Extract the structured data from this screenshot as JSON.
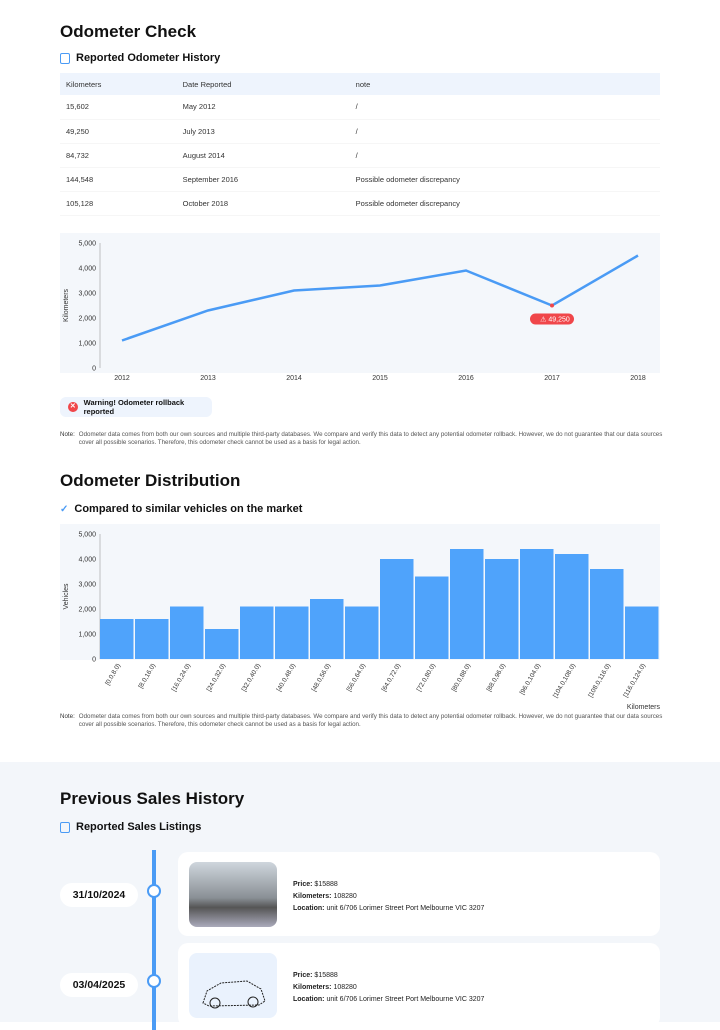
{
  "odometer": {
    "title": "Odometer Check",
    "history_title": "Reported Odometer History",
    "columns": [
      "Kilometers",
      "Date Reported",
      "note"
    ],
    "rows": [
      [
        "15,602",
        "May 2012",
        "/"
      ],
      [
        "49,250",
        "July 2013",
        "/"
      ],
      [
        "84,732",
        "August 2014",
        "/"
      ],
      [
        "144,548",
        "September 2016",
        "Possible odometer discrepancy"
      ],
      [
        "105,128",
        "October 2018",
        "Possible odometer discrepancy"
      ]
    ],
    "warning": "Warning! Odometer rollback reported",
    "note_label": "Note:",
    "note_text": "Odometer data comes from both our own sources and multiple third-party databases. We compare and verify this data to detect any potential odometer rollback. However, we do not guarantee that our data sources cover all possible scenarios. Therefore, this odometer check cannot be used as a basis for legal action."
  },
  "distribution": {
    "title": "Odometer Distribution",
    "subtitle": "Compared to similar vehicles on the market"
  },
  "sales": {
    "title": "Previous Sales History",
    "subtitle": "Reported Sales Listings",
    "items": [
      {
        "date": "31/10/2024",
        "price_label": "Price:",
        "price": "$15888",
        "km_label": "Kilometers:",
        "km": "108280",
        "loc_label": "Location:",
        "location": "unit 6/706 Lorimer Street Port Melbourne VIC 3207"
      },
      {
        "date": "03/04/2025",
        "price_label": "Price:",
        "price": "$15888",
        "km_label": "Kilometers:",
        "km": "108280",
        "loc_label": "Location:",
        "location": "unit 6/706 Lorimer Street Port Melbourne VIC 3207"
      }
    ]
  },
  "chart_data": [
    {
      "type": "line",
      "ylabel": "Kilometers",
      "x": [
        "2012",
        "2013",
        "2014",
        "2015",
        "2016",
        "2017",
        "2018"
      ],
      "values": [
        1100,
        2300,
        3100,
        3300,
        3900,
        2500,
        4500
      ],
      "ylim": [
        0,
        5000
      ],
      "yticks": [
        "0",
        "1,000",
        "2,000",
        "3,000",
        "4,000",
        "5,000"
      ],
      "annotation": {
        "index": 5,
        "text": "49,250",
        "color": "#f0464a"
      },
      "color": "#4a9bf5"
    },
    {
      "type": "bar",
      "ylabel": "Vehicles",
      "xlabel": "Kilometers",
      "categories": [
        "[0.0,8.0)",
        "[8.0,16.0)",
        "[16.0,24.0)",
        "[24.0,32.0)",
        "[32.0,40.0)",
        "[40.0,48.0)",
        "[48.0,56.0)",
        "[56.0,64.0)",
        "[64.0,72.0)",
        "[72.0,80.0)",
        "[80.0,88.0)",
        "[88.0,96.0)",
        "[96.0,104.0)",
        "[104.0,108.0)",
        "[108.0,116.0)",
        "[116.0,124.0)"
      ],
      "values": [
        1600,
        1600,
        2100,
        1200,
        2100,
        2100,
        2400,
        2100,
        4000,
        3300,
        4400,
        4000,
        4400,
        4200,
        3600,
        2100
      ],
      "ylim": [
        0,
        5000
      ],
      "yticks": [
        "0",
        "1,000",
        "2,000",
        "3,000",
        "4,000",
        "5,000"
      ],
      "color": "#4fa3fb"
    }
  ]
}
